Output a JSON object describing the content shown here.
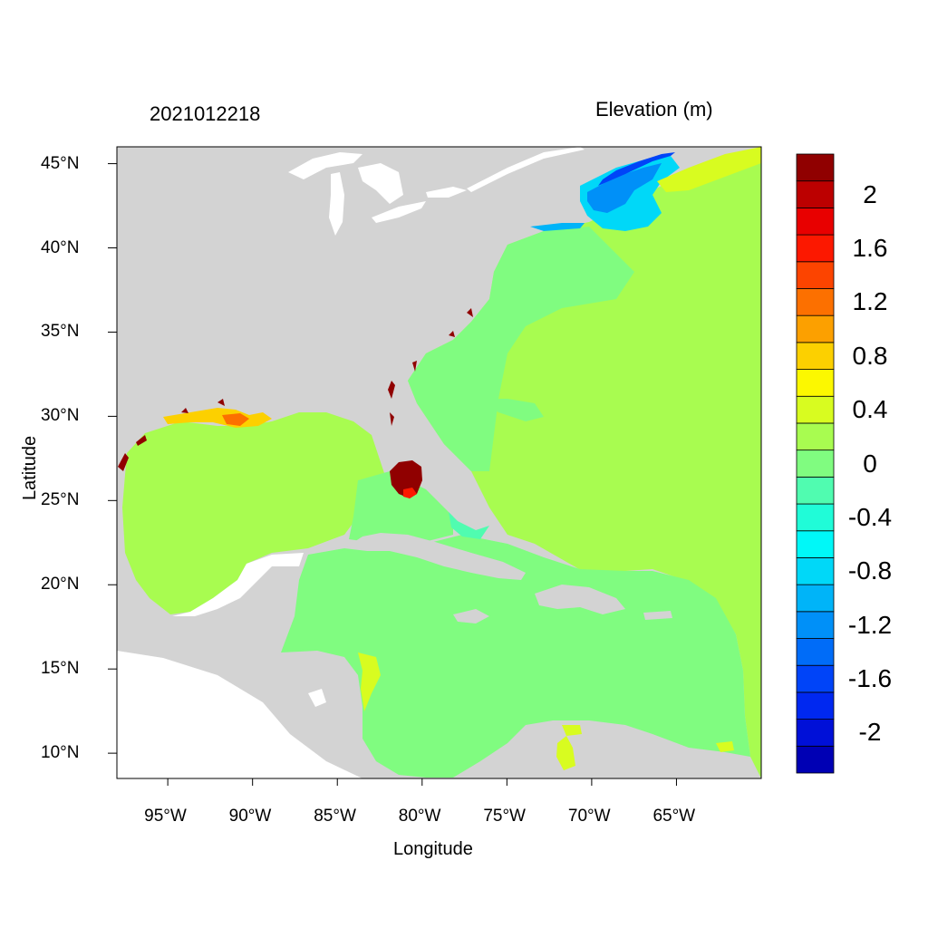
{
  "map": {
    "title_left": "2021012218",
    "title_right": "Elevation (m)",
    "xlabel": "Longitude",
    "ylabel": "Latitude",
    "lon_range": [
      -98,
      -60
    ],
    "lat_range": [
      8.5,
      46
    ],
    "xticks": [
      {
        "value": -95,
        "label": "95°W"
      },
      {
        "value": -90,
        "label": "90°W"
      },
      {
        "value": -85,
        "label": "85°W"
      },
      {
        "value": -80,
        "label": "80°W"
      },
      {
        "value": -75,
        "label": "75°W"
      },
      {
        "value": -70,
        "label": "70°W"
      },
      {
        "value": -65,
        "label": "65°W"
      }
    ],
    "yticks": [
      {
        "value": 45,
        "label": "45°N"
      },
      {
        "value": 40,
        "label": "40°N"
      },
      {
        "value": 35,
        "label": "35°N"
      },
      {
        "value": 30,
        "label": "30°N"
      },
      {
        "value": 25,
        "label": "25°N"
      },
      {
        "value": 20,
        "label": "20°N"
      },
      {
        "value": 15,
        "label": "15°N"
      },
      {
        "value": 10,
        "label": "10°N"
      }
    ],
    "land_color": "#d3d3d3",
    "lakes_color": "#ffffff"
  },
  "colorbar": {
    "colors": [
      "#0000b4",
      "#0010d8",
      "#0028f0",
      "#0044f8",
      "#006cf8",
      "#0090f8",
      "#00b4f8",
      "#00d8f8",
      "#00f8f8",
      "#20fcd8",
      "#50fcb0",
      "#80fc80",
      "#a8fc50",
      "#d8fc20",
      "#fcf800",
      "#fcd000",
      "#fca000",
      "#fc7000",
      "#fc4400",
      "#fc1800",
      "#e80000",
      "#bc0000",
      "#900000"
    ],
    "labels": [
      {
        "text": "2",
        "row": 1
      },
      {
        "text": "1.6",
        "row": 3
      },
      {
        "text": "1.2",
        "row": 5
      },
      {
        "text": "0.8",
        "row": 7
      },
      {
        "text": "0.4",
        "row": 9
      },
      {
        "text": "0",
        "row": 11
      },
      {
        "text": "-0.4",
        "row": 13
      },
      {
        "text": "-0.8",
        "row": 15
      },
      {
        "text": "-1.2",
        "row": 17
      },
      {
        "text": "-1.6",
        "row": 19
      },
      {
        "text": "-2",
        "row": 21
      }
    ]
  }
}
